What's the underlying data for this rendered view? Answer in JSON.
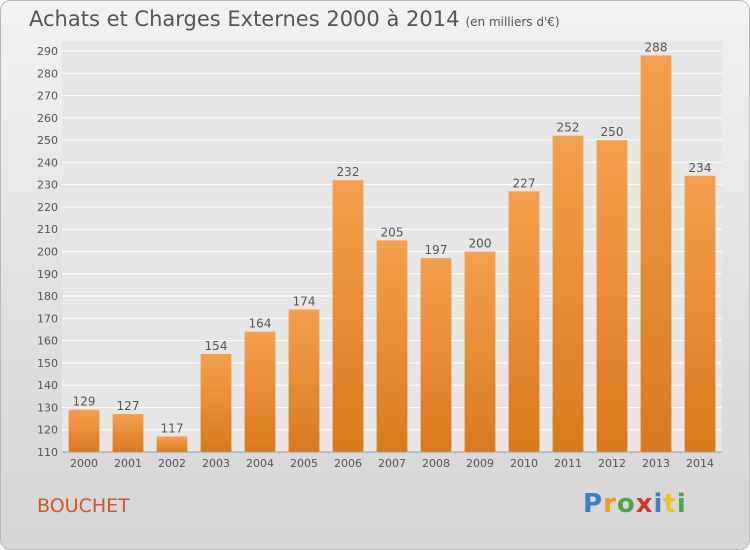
{
  "header": {
    "title": "Achats et Charges Externes 2000 à 2014",
    "subtitle": "(en milliers d'€)"
  },
  "footer": {
    "commune": "BOUCHET",
    "brand_letters": [
      "P",
      "r",
      "o",
      "x",
      "i",
      "t",
      "i"
    ]
  },
  "colors": {
    "bar_top": "#f5a04e",
    "bar_bottom": "#d97a1c",
    "grid": "#ffffff",
    "text": "#555555"
  },
  "chart_data": {
    "type": "bar",
    "title": "Achats et Charges Externes 2000 à 2014",
    "subtitle": "(en milliers d'€)",
    "categories": [
      "2000",
      "2001",
      "2002",
      "2003",
      "2004",
      "2005",
      "2006",
      "2007",
      "2008",
      "2009",
      "2010",
      "2011",
      "2012",
      "2013",
      "2014"
    ],
    "values": [
      129,
      127,
      117,
      154,
      164,
      174,
      232,
      205,
      197,
      200,
      227,
      252,
      250,
      288,
      234
    ],
    "xlabel": "",
    "ylabel": "",
    "ylim": [
      110,
      290
    ],
    "ytick_step": 10,
    "grid": true,
    "legend": "none"
  }
}
